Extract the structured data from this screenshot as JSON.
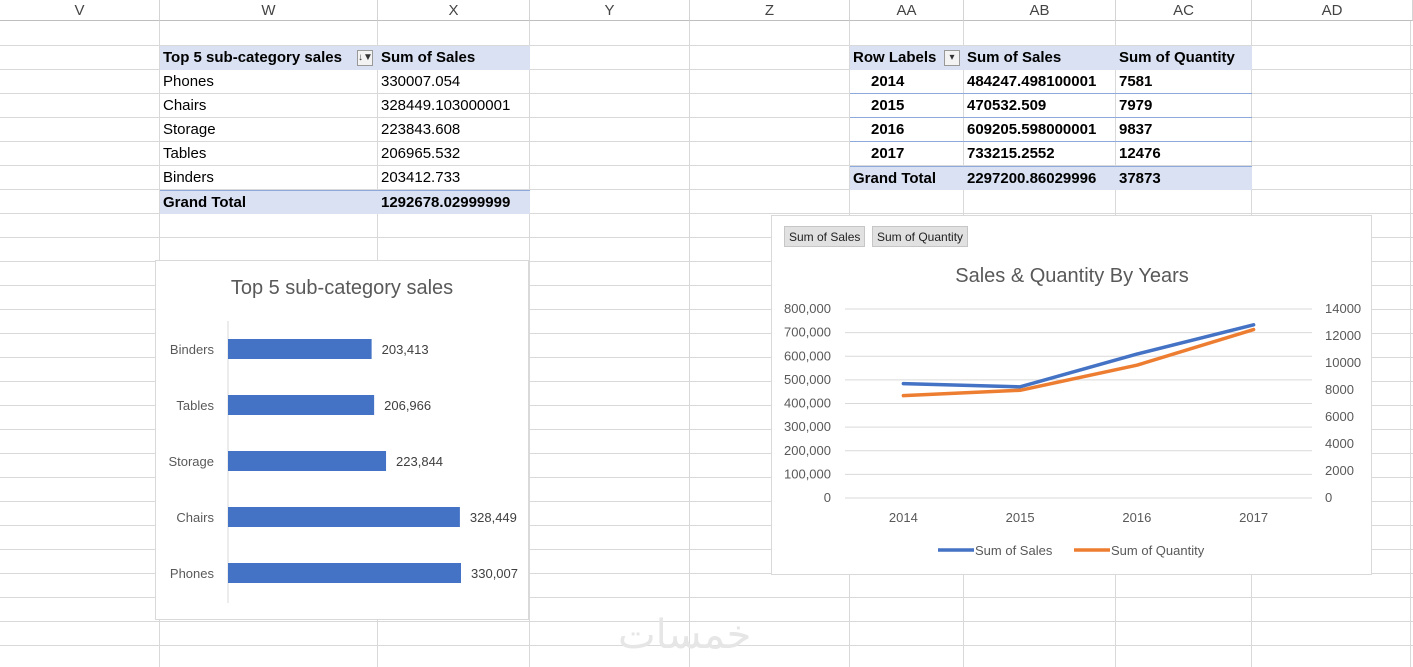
{
  "columns": [
    "V",
    "W",
    "X",
    "Y",
    "Z",
    "AA",
    "AB",
    "AC",
    "AD"
  ],
  "pivot1": {
    "header_label": "Top 5 sub-category sales",
    "header_value": "Sum of Sales",
    "rows": [
      {
        "label": "Phones",
        "value": "330007.054"
      },
      {
        "label": "Chairs",
        "value": "328449.103000001"
      },
      {
        "label": "Storage",
        "value": "223843.608"
      },
      {
        "label": "Tables",
        "value": "206965.532"
      },
      {
        "label": "Binders",
        "value": "203412.733"
      }
    ],
    "total_label": "Grand Total",
    "total_value": "1292678.02999999"
  },
  "pivot2": {
    "headers": [
      "Row Labels",
      "Sum of Sales",
      "Sum of Quantity"
    ],
    "rows": [
      {
        "year": "2014",
        "sales": "484247.498100001",
        "qty": "7581"
      },
      {
        "year": "2015",
        "sales": "470532.509",
        "qty": "7979"
      },
      {
        "year": "2016",
        "sales": "609205.598000001",
        "qty": "9837"
      },
      {
        "year": "2017",
        "sales": "733215.2552",
        "qty": "12476"
      }
    ],
    "total_label": "Grand Total",
    "total_sales": "2297200.86029996",
    "total_qty": "37873"
  },
  "chart_data": [
    {
      "type": "bar",
      "orientation": "horizontal",
      "title": "Top 5 sub-category sales",
      "categories": [
        "Binders",
        "Tables",
        "Storage",
        "Chairs",
        "Phones"
      ],
      "values": [
        203413,
        206966,
        223844,
        328449,
        330007
      ],
      "labels": [
        "203,413",
        "206,966",
        "223,844",
        "328,449",
        "330,007"
      ],
      "color": "#4472c4",
      "xlim": [
        0,
        330007
      ],
      "grid": false,
      "legend": "none"
    },
    {
      "type": "line",
      "title": "Sales & Quantity By Years",
      "field_buttons": [
        "Sum of Sales",
        "Sum of Quantity"
      ],
      "x": [
        "2014",
        "2015",
        "2016",
        "2017"
      ],
      "series": [
        {
          "name": "Sum of Sales",
          "values": [
            484247,
            470533,
            609206,
            733215
          ],
          "axis": "left",
          "color": "#4472c4"
        },
        {
          "name": "Sum of Quantity",
          "values": [
            7581,
            7979,
            9837,
            12476
          ],
          "axis": "right",
          "color": "#ed7d31"
        }
      ],
      "left_axis": {
        "ylim": [
          0,
          800000
        ],
        "ticks": [
          "0",
          "100,000",
          "200,000",
          "300,000",
          "400,000",
          "500,000",
          "600,000",
          "700,000",
          "800,000"
        ]
      },
      "right_axis": {
        "ylim": [
          0,
          14000
        ],
        "ticks": [
          "0",
          "2000",
          "4000",
          "6000",
          "8000",
          "10000",
          "12000",
          "14000"
        ]
      },
      "grid": true,
      "legend": "bottom"
    }
  ],
  "watermark": "خمسات"
}
